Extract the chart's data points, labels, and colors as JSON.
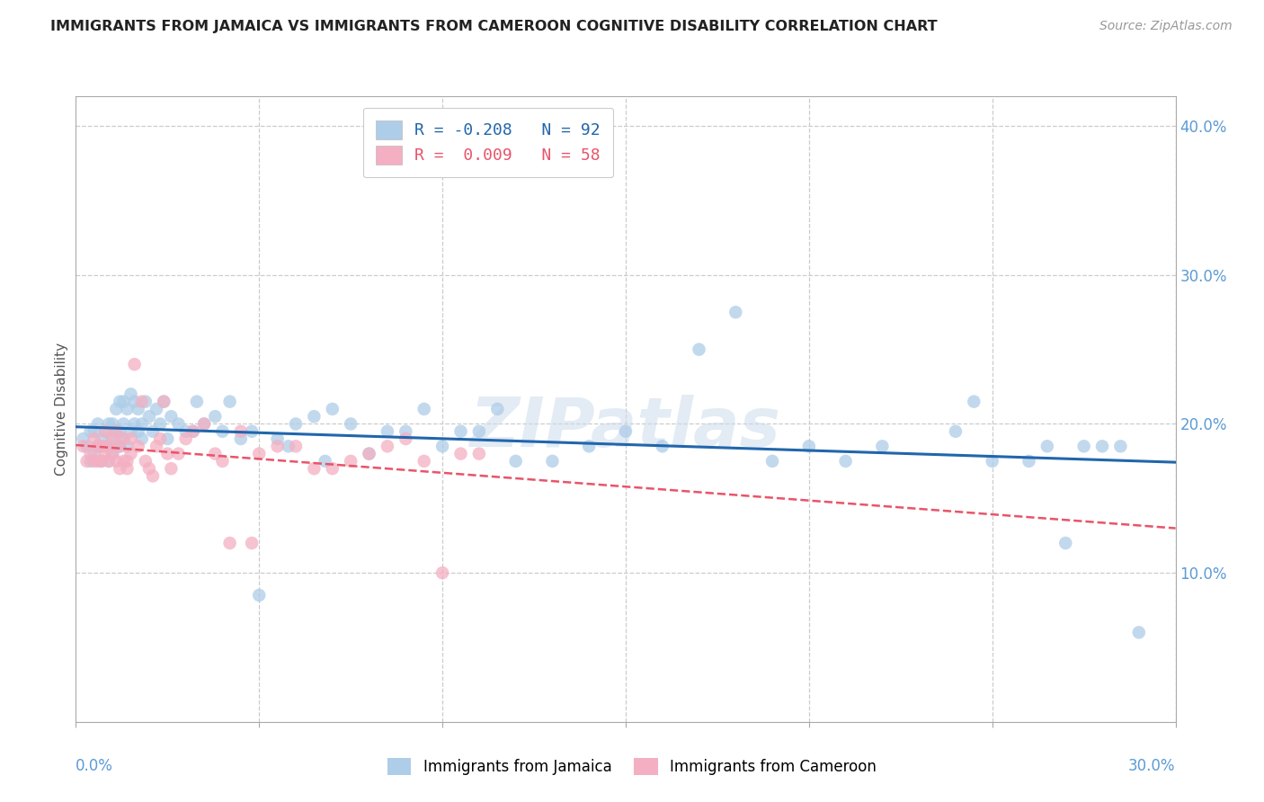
{
  "title": "IMMIGRANTS FROM JAMAICA VS IMMIGRANTS FROM CAMEROON COGNITIVE DISABILITY CORRELATION CHART",
  "source": "Source: ZipAtlas.com",
  "ylabel": "Cognitive Disability",
  "xlim": [
    0.0,
    0.3
  ],
  "ylim": [
    0.0,
    0.42
  ],
  "legend_label1": "Immigrants from Jamaica",
  "legend_label2": "Immigrants from Cameroon",
  "R1": "-0.208",
  "N1": "92",
  "R2": "0.009",
  "N2": "58",
  "color_jamaica": "#aecde8",
  "color_cameroon": "#f4afc2",
  "line_color_jamaica": "#2166ac",
  "line_color_cameroon": "#e8546a",
  "watermark": "ZIPatlas",
  "ytick_vals": [
    0.1,
    0.2,
    0.3,
    0.4
  ],
  "ytick_labels": [
    "10.0%",
    "20.0%",
    "30.0%",
    "40.0%"
  ],
  "jamaica_x": [
    0.002,
    0.003,
    0.004,
    0.004,
    0.005,
    0.005,
    0.006,
    0.006,
    0.007,
    0.007,
    0.008,
    0.008,
    0.009,
    0.009,
    0.009,
    0.01,
    0.01,
    0.01,
    0.011,
    0.011,
    0.011,
    0.012,
    0.012,
    0.012,
    0.013,
    0.013,
    0.013,
    0.014,
    0.014,
    0.015,
    0.015,
    0.016,
    0.016,
    0.017,
    0.017,
    0.018,
    0.018,
    0.019,
    0.02,
    0.021,
    0.022,
    0.023,
    0.024,
    0.025,
    0.026,
    0.028,
    0.03,
    0.032,
    0.033,
    0.035,
    0.038,
    0.04,
    0.042,
    0.045,
    0.048,
    0.05,
    0.055,
    0.058,
    0.06,
    0.065,
    0.068,
    0.07,
    0.075,
    0.08,
    0.085,
    0.09,
    0.095,
    0.1,
    0.105,
    0.11,
    0.115,
    0.12,
    0.13,
    0.14,
    0.15,
    0.16,
    0.17,
    0.18,
    0.19,
    0.2,
    0.21,
    0.22,
    0.24,
    0.245,
    0.25,
    0.26,
    0.265,
    0.27,
    0.275,
    0.28,
    0.285,
    0.29
  ],
  "jamaica_y": [
    0.19,
    0.185,
    0.175,
    0.195,
    0.18,
    0.195,
    0.185,
    0.2,
    0.175,
    0.19,
    0.185,
    0.195,
    0.175,
    0.185,
    0.2,
    0.18,
    0.19,
    0.2,
    0.185,
    0.195,
    0.21,
    0.185,
    0.195,
    0.215,
    0.19,
    0.2,
    0.215,
    0.185,
    0.21,
    0.195,
    0.22,
    0.2,
    0.215,
    0.195,
    0.21,
    0.19,
    0.2,
    0.215,
    0.205,
    0.195,
    0.21,
    0.2,
    0.215,
    0.19,
    0.205,
    0.2,
    0.195,
    0.195,
    0.215,
    0.2,
    0.205,
    0.195,
    0.215,
    0.19,
    0.195,
    0.085,
    0.19,
    0.185,
    0.2,
    0.205,
    0.175,
    0.21,
    0.2,
    0.18,
    0.195,
    0.195,
    0.21,
    0.185,
    0.195,
    0.195,
    0.21,
    0.175,
    0.175,
    0.185,
    0.195,
    0.185,
    0.25,
    0.275,
    0.175,
    0.185,
    0.175,
    0.185,
    0.195,
    0.215,
    0.175,
    0.175,
    0.185,
    0.12,
    0.185,
    0.185,
    0.185,
    0.06
  ],
  "cameroon_x": [
    0.002,
    0.003,
    0.004,
    0.005,
    0.005,
    0.006,
    0.006,
    0.007,
    0.007,
    0.008,
    0.008,
    0.009,
    0.009,
    0.01,
    0.01,
    0.011,
    0.011,
    0.012,
    0.012,
    0.013,
    0.013,
    0.014,
    0.014,
    0.015,
    0.015,
    0.016,
    0.017,
    0.018,
    0.019,
    0.02,
    0.021,
    0.022,
    0.023,
    0.024,
    0.025,
    0.026,
    0.028,
    0.03,
    0.032,
    0.035,
    0.038,
    0.04,
    0.042,
    0.045,
    0.048,
    0.05,
    0.055,
    0.06,
    0.065,
    0.07,
    0.075,
    0.08,
    0.085,
    0.09,
    0.095,
    0.1,
    0.105,
    0.11
  ],
  "cameroon_y": [
    0.185,
    0.175,
    0.18,
    0.19,
    0.175,
    0.185,
    0.175,
    0.185,
    0.175,
    0.18,
    0.195,
    0.175,
    0.185,
    0.18,
    0.19,
    0.175,
    0.195,
    0.17,
    0.185,
    0.175,
    0.19,
    0.175,
    0.17,
    0.18,
    0.19,
    0.24,
    0.185,
    0.215,
    0.175,
    0.17,
    0.165,
    0.185,
    0.19,
    0.215,
    0.18,
    0.17,
    0.18,
    0.19,
    0.195,
    0.2,
    0.18,
    0.175,
    0.12,
    0.195,
    0.12,
    0.18,
    0.185,
    0.185,
    0.17,
    0.17,
    0.175,
    0.18,
    0.185,
    0.19,
    0.175,
    0.1,
    0.18,
    0.18
  ]
}
